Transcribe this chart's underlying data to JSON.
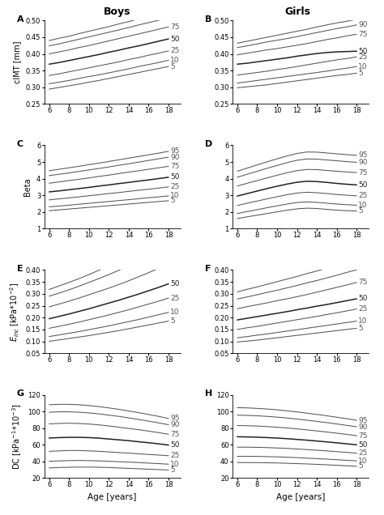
{
  "age": [
    6,
    7,
    8,
    9,
    10,
    11,
    12,
    13,
    14,
    15,
    16,
    17,
    18
  ],
  "percentiles": [
    "5",
    "10",
    "25",
    "50",
    "75",
    "90",
    "95"
  ],
  "panels": {
    "A": {
      "ylim": [
        0.25,
        0.5
      ],
      "yticks": [
        0.25,
        0.3,
        0.35,
        0.4,
        0.45,
        0.5
      ],
      "curves": {
        "5": [
          0.294,
          0.299,
          0.304,
          0.309,
          0.315,
          0.32,
          0.326,
          0.332,
          0.338,
          0.344,
          0.35,
          0.356,
          0.362
        ],
        "10": [
          0.31,
          0.315,
          0.32,
          0.326,
          0.332,
          0.337,
          0.343,
          0.349,
          0.355,
          0.362,
          0.368,
          0.374,
          0.381
        ],
        "25": [
          0.335,
          0.34,
          0.346,
          0.352,
          0.358,
          0.364,
          0.37,
          0.376,
          0.383,
          0.389,
          0.396,
          0.402,
          0.409
        ],
        "50": [
          0.369,
          0.374,
          0.38,
          0.386,
          0.392,
          0.398,
          0.405,
          0.411,
          0.418,
          0.424,
          0.431,
          0.438,
          0.445
        ],
        "75": [
          0.4,
          0.406,
          0.412,
          0.419,
          0.425,
          0.432,
          0.439,
          0.446,
          0.453,
          0.46,
          0.467,
          0.474,
          0.481
        ],
        "90": [
          0.424,
          0.43,
          0.437,
          0.444,
          0.451,
          0.458,
          0.465,
          0.472,
          0.479,
          0.487,
          0.494,
          0.501,
          0.508
        ],
        "95": [
          0.44,
          0.447,
          0.453,
          0.461,
          0.468,
          0.475,
          0.482,
          0.49,
          0.497,
          0.505,
          0.512,
          0.52,
          0.527
        ]
      }
    },
    "B": {
      "ylim": [
        0.25,
        0.5
      ],
      "yticks": [
        0.25,
        0.3,
        0.35,
        0.4,
        0.45,
        0.5
      ],
      "curves": {
        "5": [
          0.298,
          0.301,
          0.304,
          0.307,
          0.311,
          0.315,
          0.319,
          0.323,
          0.327,
          0.331,
          0.335,
          0.338,
          0.342
        ],
        "10": [
          0.312,
          0.316,
          0.32,
          0.324,
          0.328,
          0.332,
          0.336,
          0.34,
          0.344,
          0.348,
          0.353,
          0.357,
          0.362
        ],
        "25": [
          0.336,
          0.34,
          0.344,
          0.348,
          0.353,
          0.357,
          0.362,
          0.367,
          0.372,
          0.377,
          0.382,
          0.386,
          0.391
        ],
        "50": [
          0.369,
          0.372,
          0.376,
          0.38,
          0.384,
          0.388,
          0.393,
          0.397,
          0.401,
          0.404,
          0.406,
          0.407,
          0.408
        ],
        "75": [
          0.397,
          0.402,
          0.407,
          0.412,
          0.416,
          0.421,
          0.426,
          0.431,
          0.437,
          0.443,
          0.448,
          0.454,
          0.459
        ],
        "90": [
          0.419,
          0.424,
          0.43,
          0.436,
          0.441,
          0.446,
          0.452,
          0.458,
          0.464,
          0.47,
          0.476,
          0.481,
          0.487
        ],
        "95": [
          0.432,
          0.438,
          0.444,
          0.45,
          0.456,
          0.462,
          0.468,
          0.474,
          0.481,
          0.487,
          0.493,
          0.498,
          0.504
        ]
      }
    },
    "C": {
      "ylim": [
        1,
        6
      ],
      "yticks": [
        1,
        2,
        3,
        4,
        5,
        6
      ],
      "curves": {
        "5": [
          2.07,
          2.12,
          2.17,
          2.22,
          2.27,
          2.32,
          2.37,
          2.42,
          2.47,
          2.52,
          2.57,
          2.62,
          2.67
        ],
        "10": [
          2.3,
          2.35,
          2.4,
          2.46,
          2.51,
          2.57,
          2.62,
          2.68,
          2.73,
          2.79,
          2.85,
          2.9,
          2.96
        ],
        "25": [
          2.72,
          2.78,
          2.84,
          2.9,
          2.97,
          3.03,
          3.1,
          3.16,
          3.23,
          3.3,
          3.36,
          3.43,
          3.5
        ],
        "50": [
          3.2,
          3.26,
          3.33,
          3.4,
          3.47,
          3.55,
          3.62,
          3.7,
          3.77,
          3.85,
          3.92,
          4.0,
          4.08
        ],
        "75": [
          3.72,
          3.8,
          3.88,
          3.96,
          4.04,
          4.13,
          4.21,
          4.3,
          4.39,
          4.47,
          4.56,
          4.65,
          4.74
        ],
        "90": [
          4.18,
          4.26,
          4.34,
          4.43,
          4.52,
          4.61,
          4.7,
          4.8,
          4.89,
          4.99,
          5.09,
          5.19,
          5.29
        ],
        "95": [
          4.47,
          4.56,
          4.65,
          4.74,
          4.84,
          4.93,
          5.03,
          5.13,
          5.23,
          5.33,
          5.43,
          5.53,
          5.64
        ]
      }
    },
    "D": {
      "ylim": [
        1,
        6
      ],
      "yticks": [
        1,
        2,
        3,
        4,
        5,
        6
      ],
      "curves": {
        "5": [
          1.6,
          1.7,
          1.8,
          1.9,
          2.0,
          2.1,
          2.18,
          2.22,
          2.2,
          2.15,
          2.1,
          2.07,
          2.05
        ],
        "10": [
          1.9,
          2.02,
          2.13,
          2.25,
          2.36,
          2.47,
          2.56,
          2.6,
          2.57,
          2.52,
          2.47,
          2.43,
          2.4
        ],
        "25": [
          2.38,
          2.52,
          2.65,
          2.78,
          2.91,
          3.03,
          3.13,
          3.18,
          3.15,
          3.1,
          3.04,
          3.0,
          2.96
        ],
        "50": [
          2.95,
          3.1,
          3.25,
          3.4,
          3.54,
          3.67,
          3.78,
          3.84,
          3.82,
          3.77,
          3.71,
          3.66,
          3.62
        ],
        "75": [
          3.55,
          3.72,
          3.88,
          4.04,
          4.2,
          4.35,
          4.48,
          4.55,
          4.54,
          4.49,
          4.44,
          4.4,
          4.36
        ],
        "90": [
          4.08,
          4.26,
          4.44,
          4.62,
          4.79,
          4.96,
          5.1,
          5.18,
          5.17,
          5.12,
          5.07,
          5.02,
          4.98
        ],
        "95": [
          4.44,
          4.63,
          4.82,
          5.01,
          5.19,
          5.36,
          5.51,
          5.6,
          5.59,
          5.54,
          5.49,
          5.44,
          5.4
        ]
      }
    },
    "E": {
      "ylim": [
        0.05,
        0.4
      ],
      "yticks": [
        0.05,
        0.1,
        0.15,
        0.2,
        0.25,
        0.3,
        0.35,
        0.4
      ],
      "curves": {
        "5": [
          0.1,
          0.106,
          0.112,
          0.118,
          0.124,
          0.131,
          0.138,
          0.145,
          0.153,
          0.161,
          0.169,
          0.177,
          0.185
        ],
        "10": [
          0.12,
          0.127,
          0.134,
          0.141,
          0.149,
          0.157,
          0.165,
          0.174,
          0.183,
          0.192,
          0.202,
          0.212,
          0.222
        ],
        "25": [
          0.155,
          0.163,
          0.172,
          0.181,
          0.191,
          0.201,
          0.211,
          0.222,
          0.233,
          0.245,
          0.257,
          0.269,
          0.282
        ],
        "50": [
          0.195,
          0.205,
          0.215,
          0.226,
          0.237,
          0.249,
          0.261,
          0.273,
          0.286,
          0.299,
          0.313,
          0.327,
          0.342
        ],
        "75": [
          0.245,
          0.257,
          0.269,
          0.282,
          0.296,
          0.31,
          0.324,
          0.339,
          0.355,
          0.372,
          0.389,
          0.407,
          0.425
        ],
        "90": [
          0.29,
          0.303,
          0.317,
          0.332,
          0.348,
          0.364,
          0.381,
          0.399,
          0.417,
          0.437,
          0.457,
          0.478,
          0.5
        ],
        "95": [
          0.318,
          0.333,
          0.348,
          0.364,
          0.381,
          0.399,
          0.417,
          0.437,
          0.457,
          0.478,
          0.5,
          0.522,
          0.546
        ]
      }
    },
    "F": {
      "ylim": [
        0.05,
        0.4
      ],
      "yticks": [
        0.05,
        0.1,
        0.15,
        0.2,
        0.25,
        0.3,
        0.35,
        0.4
      ],
      "curves": {
        "5": [
          0.097,
          0.101,
          0.105,
          0.11,
          0.115,
          0.12,
          0.125,
          0.13,
          0.135,
          0.14,
          0.145,
          0.15,
          0.155
        ],
        "10": [
          0.115,
          0.12,
          0.126,
          0.131,
          0.137,
          0.143,
          0.149,
          0.155,
          0.161,
          0.167,
          0.173,
          0.179,
          0.185
        ],
        "25": [
          0.15,
          0.157,
          0.163,
          0.17,
          0.177,
          0.184,
          0.191,
          0.198,
          0.205,
          0.213,
          0.22,
          0.228,
          0.236
        ],
        "50": [
          0.19,
          0.197,
          0.204,
          0.211,
          0.218,
          0.225,
          0.233,
          0.24,
          0.248,
          0.255,
          0.263,
          0.271,
          0.279
        ],
        "75": [
          0.237,
          0.246,
          0.254,
          0.262,
          0.271,
          0.279,
          0.288,
          0.297,
          0.307,
          0.317,
          0.327,
          0.337,
          0.348
        ],
        "90": [
          0.278,
          0.287,
          0.296,
          0.306,
          0.315,
          0.325,
          0.335,
          0.346,
          0.356,
          0.367,
          0.378,
          0.39,
          0.401
        ],
        "95": [
          0.308,
          0.319,
          0.329,
          0.34,
          0.351,
          0.362,
          0.373,
          0.385,
          0.396,
          0.408,
          0.421,
          0.433,
          0.446
        ]
      }
    },
    "G": {
      "ylim": [
        20,
        120
      ],
      "yticks": [
        20,
        40,
        60,
        80,
        100,
        120
      ],
      "curves": {
        "5": [
          32.0,
          32.5,
          32.8,
          33.0,
          33.0,
          32.8,
          32.5,
          32.0,
          31.5,
          31.0,
          30.5,
          30.0,
          29.5
        ],
        "10": [
          40.0,
          40.5,
          40.8,
          41.0,
          40.8,
          40.5,
          40.0,
          39.5,
          39.0,
          38.5,
          37.8,
          37.2,
          36.5
        ],
        "25": [
          52.0,
          52.5,
          53.0,
          53.0,
          52.5,
          52.0,
          51.3,
          50.5,
          49.8,
          49.0,
          48.2,
          47.5,
          46.7
        ],
        "50": [
          68.0,
          68.5,
          68.8,
          68.8,
          68.5,
          67.8,
          66.8,
          65.8,
          64.8,
          63.5,
          62.3,
          61.0,
          59.5
        ],
        "75": [
          85.0,
          85.5,
          85.8,
          85.5,
          84.8,
          83.8,
          82.5,
          81.0,
          79.5,
          78.0,
          76.3,
          74.5,
          72.5
        ],
        "90": [
          99.0,
          99.5,
          99.5,
          99.0,
          98.2,
          97.0,
          95.5,
          94.0,
          92.2,
          90.3,
          88.3,
          86.2,
          84.0
        ],
        "95": [
          108.0,
          108.5,
          108.5,
          108.0,
          107.0,
          105.8,
          104.2,
          102.5,
          100.5,
          98.5,
          96.3,
          94.0,
          91.5
        ]
      }
    },
    "H": {
      "ylim": [
        20,
        120
      ],
      "yticks": [
        20,
        40,
        60,
        80,
        100,
        120
      ],
      "curves": {
        "5": [
          38.5,
          38.5,
          38.4,
          38.2,
          38.0,
          37.6,
          37.2,
          36.8,
          36.3,
          35.8,
          35.2,
          34.6,
          34.0
        ],
        "10": [
          46.0,
          46.0,
          45.9,
          45.6,
          45.3,
          44.9,
          44.4,
          43.8,
          43.2,
          42.6,
          41.9,
          41.2,
          40.5
        ],
        "25": [
          57.0,
          57.0,
          56.8,
          56.5,
          56.0,
          55.5,
          54.8,
          54.1,
          53.3,
          52.5,
          51.6,
          50.7,
          49.8
        ],
        "50": [
          69.5,
          69.3,
          69.0,
          68.5,
          67.9,
          67.2,
          66.3,
          65.4,
          64.4,
          63.3,
          62.2,
          61.0,
          59.8
        ],
        "75": [
          83.0,
          82.8,
          82.4,
          81.8,
          81.0,
          80.1,
          79.0,
          77.8,
          76.5,
          75.2,
          73.8,
          72.3,
          70.8
        ],
        "90": [
          95.5,
          95.2,
          94.7,
          94.0,
          93.1,
          92.0,
          90.8,
          89.4,
          88.0,
          86.5,
          84.9,
          83.2,
          81.5
        ],
        "95": [
          104.5,
          104.2,
          103.6,
          102.9,
          101.9,
          100.7,
          99.4,
          97.9,
          96.4,
          94.7,
          93.0,
          91.2,
          89.3
        ]
      }
    }
  },
  "line_color": "#555555",
  "line_width": 0.75,
  "label_fontsize": 6.5,
  "tick_fontsize": 6.0,
  "panel_label_fontsize": 8,
  "ylabel_fontsize": 7.0,
  "xlabel_fontsize": 7.5,
  "boys_title": "Boys",
  "girls_title": "Girls",
  "title_fontsize": 9
}
